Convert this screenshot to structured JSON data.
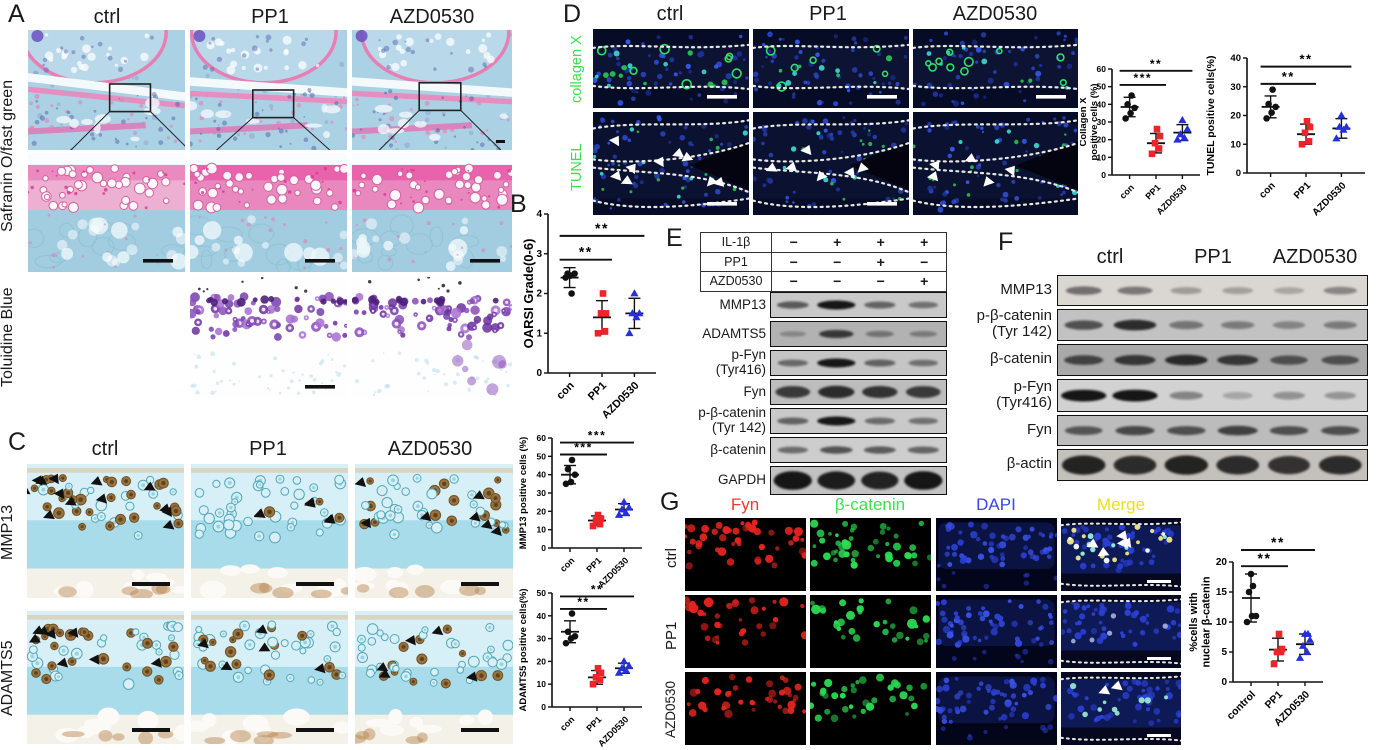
{
  "figure": {
    "panels": {
      "A": {
        "label": "A",
        "col_headers": [
          "ctrl",
          "PP1",
          "AZD0530"
        ],
        "row_labels": [
          "Safranin O/fast green",
          "Toluidine Blue"
        ]
      },
      "B": {
        "label": "B"
      },
      "C": {
        "label": "C",
        "col_headers": [
          "ctrl",
          "PP1",
          "AZD0530"
        ],
        "row_labels": [
          "MMP13",
          "ADAMTS5"
        ]
      },
      "D": {
        "label": "D",
        "col_headers": [
          "ctrl",
          "PP1",
          "AZD0530"
        ],
        "row_labels": [
          "collagen X",
          "TUNEL"
        ],
        "row_label_color": "#3bdf52"
      },
      "E": {
        "label": "E",
        "conditions": [
          {
            "name": "IL-1β",
            "values": [
              "−",
              "+",
              "+",
              "+"
            ]
          },
          {
            "name": "PP1",
            "values": [
              "−",
              "−",
              "+",
              "−"
            ]
          },
          {
            "name": "AZD0530",
            "values": [
              "−",
              "−",
              "−",
              "+"
            ]
          }
        ],
        "blots": [
          {
            "lines": [
              "MMP13"
            ],
            "bands": [
              0.55,
              1,
              0.5,
              0.4
            ],
            "bg": "#c9c9c9"
          },
          {
            "lines": [
              "ADAMTS5"
            ],
            "bands": [
              0.15,
              0.75,
              0.3,
              0.25
            ],
            "bg": "#b2b2b2"
          },
          {
            "lines": [
              "p-Fyn",
              "(Tyr416)"
            ],
            "bands": [
              0.45,
              1,
              0.5,
              0.4
            ],
            "bg": "#c5c5c5"
          },
          {
            "lines": [
              "Fyn"
            ],
            "bands": [
              0.75,
              0.85,
              0.8,
              0.75
            ],
            "bg": "#bdbdbd",
            "thick": 0.5
          },
          {
            "lines": [
              "p-β-catenin",
              "(Tyr 142)"
            ],
            "bands": [
              0.5,
              1,
              0.45,
              0.4
            ],
            "bg": "#c9c9c9"
          },
          {
            "lines": [
              "β-catenin"
            ],
            "bands": [
              0.45,
              0.6,
              0.55,
              0.5
            ],
            "bg": "#cdcdcd"
          },
          {
            "lines": [
              "GAPDH"
            ],
            "bands": [
              1,
              0.95,
              0.92,
              1
            ],
            "bg": "#c2c2c2",
            "thick": 0.62
          }
        ]
      },
      "F": {
        "label": "F",
        "col_headers": [
          "ctrl",
          "PP1",
          "AZD0530"
        ],
        "blots": [
          {
            "lines": [
              "MMP13"
            ],
            "bands": [
              0.45,
              0.4,
              0.18,
              0.15,
              0.12,
              0.3
            ],
            "bg": "#dad6d2"
          },
          {
            "lines": [
              "p-β-catenin",
              "(Tyr 142)"
            ],
            "bands": [
              0.6,
              0.85,
              0.35,
              0.3,
              0.25,
              0.3
            ],
            "bg": "#c2c2c2"
          },
          {
            "lines": [
              "β-catenin"
            ],
            "bands": [
              0.65,
              0.75,
              0.85,
              0.75,
              0.55,
              0.55
            ],
            "bg": "#a9a9a9"
          },
          {
            "lines": [
              "p-Fyn",
              "(Tyr416)"
            ],
            "bands": [
              1,
              1,
              0.3,
              0.1,
              0.22,
              0.2
            ],
            "bg": "#d2d2d2"
          },
          {
            "lines": [
              "Fyn"
            ],
            "bands": [
              0.55,
              0.65,
              0.6,
              0.7,
              0.6,
              0.6
            ],
            "bg": "#bcbcbc"
          },
          {
            "lines": [
              "β-actin"
            ],
            "bands": [
              0.9,
              0.85,
              0.9,
              0.85,
              0.8,
              0.85
            ],
            "bg": "#c4c0bc",
            "thick": 0.6
          }
        ]
      },
      "G": {
        "label": "G",
        "col_headers": [
          {
            "text": "Fyn",
            "color": "#f03a30"
          },
          {
            "text": "β-catenin",
            "color": "#3bdf52"
          },
          {
            "text": "DAPI",
            "color": "#3947e6"
          },
          {
            "text": "Merge",
            "color": "#e8e020"
          }
        ],
        "row_labels": [
          "ctrl",
          "PP1",
          "AZD0530"
        ]
      }
    },
    "chart_data": [
      {
        "id": "chart-oarsi",
        "type": "scatter",
        "title": "",
        "xlabel": "",
        "ylabel": [
          "OARSI Grade(0-6)"
        ],
        "ylim": [
          0,
          4
        ],
        "ystep": 1,
        "categories": [
          "con",
          "PP1",
          "AZD0530"
        ],
        "series": [
          {
            "name": "con",
            "color": "#111111",
            "marker": "circle",
            "values": [
              2.4,
              2.45,
              2.5,
              2.5,
              2.0
            ],
            "mean": 2.4,
            "err": 0.25
          },
          {
            "name": "PP1",
            "color": "#ee2428",
            "marker": "square",
            "values": [
              1.0,
              1.05,
              1.5,
              1.5,
              2.0
            ],
            "mean": 1.4,
            "err": 0.42
          },
          {
            "name": "AZD0530",
            "color": "#2430dd",
            "marker": "triangle",
            "values": [
              1.0,
              1.4,
              1.5,
              1.5,
              2.0
            ],
            "mean": 1.5,
            "err": 0.38
          }
        ],
        "sig": [
          {
            "from": 0,
            "to": 1,
            "label": "**",
            "y": 2.85
          },
          {
            "from": 0,
            "to": 2,
            "label": "**",
            "y": 3.45
          }
        ]
      },
      {
        "id": "chart-mmp13",
        "type": "scatter",
        "ylabel": [
          "MMP13 positive cells (%)"
        ],
        "ylim": [
          0,
          60
        ],
        "ystep": 10,
        "categories": [
          "con",
          "PP1",
          "AZD0530"
        ],
        "series": [
          {
            "name": "con",
            "color": "#111111",
            "marker": "circle",
            "values": [
              35,
              36,
              40,
              43,
              48
            ],
            "mean": 40,
            "err": 5
          },
          {
            "name": "PP1",
            "color": "#ee2428",
            "marker": "square",
            "values": [
              12,
              13,
              15,
              16,
              18
            ],
            "mean": 15,
            "err": 2.5
          },
          {
            "name": "AZD0530",
            "color": "#2430dd",
            "marker": "triangle",
            "values": [
              18,
              19,
              21,
              22,
              25
            ],
            "mean": 21,
            "err": 3.2
          }
        ],
        "sig": [
          {
            "from": 0,
            "to": 1,
            "label": "***",
            "y": 51
          },
          {
            "from": 0,
            "to": 2,
            "label": "***",
            "y": 57.5
          }
        ]
      },
      {
        "id": "chart-adamts5",
        "type": "scatter",
        "ylabel": [
          "ADAMTS5 positive cells(%)"
        ],
        "ylim": [
          0,
          50
        ],
        "ystep": 10,
        "categories": [
          "con",
          "PP1",
          "AZD0530"
        ],
        "series": [
          {
            "name": "con",
            "color": "#111111",
            "marker": "circle",
            "values": [
              28,
              30,
              31,
              33,
              41
            ],
            "mean": 33,
            "err": 4.8
          },
          {
            "name": "PP1",
            "color": "#ee2428",
            "marker": "square",
            "values": [
              10,
              12,
              13,
              15,
              17
            ],
            "mean": 13,
            "err": 3
          },
          {
            "name": "AZD0530",
            "color": "#2430dd",
            "marker": "triangle",
            "values": [
              15,
              16,
              17,
              18,
              20
            ],
            "mean": 17,
            "err": 2.2
          }
        ],
        "sig": [
          {
            "from": 0,
            "to": 1,
            "label": "**",
            "y": 43
          },
          {
            "from": 0,
            "to": 2,
            "label": "**",
            "y": 48.5
          }
        ]
      },
      {
        "id": "chart-colx",
        "type": "scatter",
        "ylabel": [
          "Collagen X",
          "positive cells (%)"
        ],
        "ylim": [
          0,
          60
        ],
        "ystep": 10,
        "categories": [
          "con",
          "PP1",
          "AZD0530"
        ],
        "series": [
          {
            "name": "con",
            "color": "#111111",
            "marker": "circle",
            "values": [
              32,
              35,
              38,
              40,
              45
            ],
            "mean": 38.5,
            "err": 5.5
          },
          {
            "name": "PP1",
            "color": "#ee2428",
            "marker": "square",
            "values": [
              12,
              15,
              18,
              22,
              26
            ],
            "mean": 18,
            "err": 5.5
          },
          {
            "name": "AZD0530",
            "color": "#2430dd",
            "marker": "triangle",
            "values": [
              20,
              21,
              23,
              26,
              31
            ],
            "mean": 24,
            "err": 4.5
          }
        ],
        "sig": [
          {
            "from": 0,
            "to": 1,
            "label": "***",
            "y": 51
          },
          {
            "from": 0,
            "to": 2,
            "label": "**",
            "y": 59
          }
        ]
      },
      {
        "id": "chart-tunel",
        "type": "scatter",
        "ylabel": [
          "TUNEL positive cells(%)"
        ],
        "ylim": [
          0,
          40
        ],
        "ystep": 10,
        "categories": [
          "con",
          "PP1",
          "AZD0530"
        ],
        "series": [
          {
            "name": "con",
            "color": "#111111",
            "marker": "circle",
            "values": [
              19,
              21,
              23,
              24,
              29
            ],
            "mean": 23,
            "err": 3.8
          },
          {
            "name": "PP1",
            "color": "#ee2428",
            "marker": "square",
            "values": [
              10,
              11,
              14,
              16,
              18
            ],
            "mean": 13.5,
            "err": 3.5
          },
          {
            "name": "AZD0530",
            "color": "#2430dd",
            "marker": "triangle",
            "values": [
              12,
              15,
              16,
              16,
              20
            ],
            "mean": 15.5,
            "err": 3.4
          }
        ],
        "sig": [
          {
            "from": 0,
            "to": 1,
            "label": "**",
            "y": 31
          },
          {
            "from": 0,
            "to": 2,
            "label": "**",
            "y": 37
          }
        ]
      },
      {
        "id": "chart-nuclear",
        "type": "scatter",
        "ylabel": [
          "%cells with",
          "nuclear β-catenin"
        ],
        "ylim": [
          0,
          20
        ],
        "ystep": 5,
        "categories": [
          "control",
          "PP1",
          "AZD0530"
        ],
        "series": [
          {
            "name": "control",
            "color": "#111111",
            "marker": "circle",
            "values": [
              10,
              11,
              11,
              15,
              16,
              18
            ],
            "mean": 14,
            "err": 4
          },
          {
            "name": "PP1",
            "color": "#ee2428",
            "marker": "square",
            "values": [
              3,
              5,
              5,
              5.5,
              8
            ],
            "mean": 5.4,
            "err": 1.9
          },
          {
            "name": "AZD0530",
            "color": "#2430dd",
            "marker": "triangle",
            "values": [
              4,
              5,
              6,
              7,
              8,
              8
            ],
            "mean": 6.3,
            "err": 1.7
          }
        ],
        "sig": [
          {
            "from": 0,
            "to": 1,
            "label": "**",
            "y": 19.3
          },
          {
            "from": 0,
            "to": 2,
            "label": "**",
            "y": 22
          }
        ]
      }
    ]
  }
}
